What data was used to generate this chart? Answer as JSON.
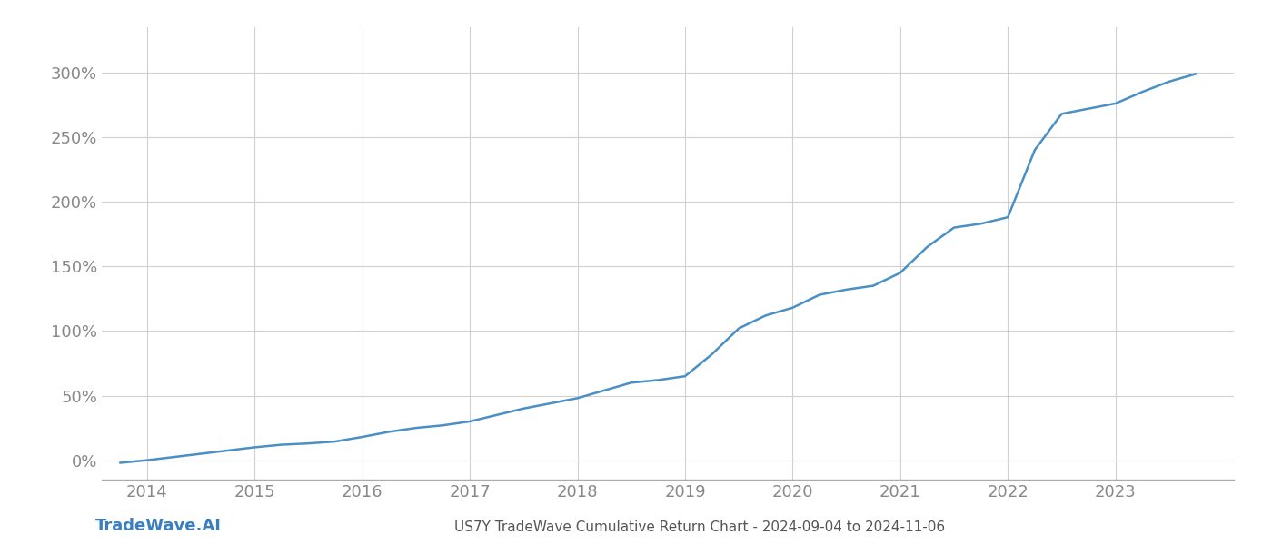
{
  "title": "US7Y TradeWave Cumulative Return Chart - 2024-09-04 to 2024-11-06",
  "watermark": "TradeWave.AI",
  "line_color": "#4a90c4",
  "background_color": "#ffffff",
  "grid_color": "#d0d0d0",
  "x_years": [
    2014,
    2015,
    2016,
    2017,
    2018,
    2019,
    2020,
    2021,
    2022,
    2023
  ],
  "x_data": [
    2013.75,
    2014.0,
    2014.25,
    2014.5,
    2014.75,
    2015.0,
    2015.25,
    2015.5,
    2015.75,
    2016.0,
    2016.25,
    2016.5,
    2016.75,
    2017.0,
    2017.25,
    2017.5,
    2017.75,
    2018.0,
    2018.25,
    2018.5,
    2018.75,
    2019.0,
    2019.25,
    2019.5,
    2019.75,
    2020.0,
    2020.25,
    2020.5,
    2020.75,
    2021.0,
    2021.25,
    2021.5,
    2021.75,
    2022.0,
    2022.25,
    2022.5,
    2022.75,
    2023.0,
    2023.25,
    2023.5,
    2023.75
  ],
  "y_data": [
    -2.0,
    0.0,
    2.5,
    5.0,
    7.5,
    10.0,
    12.0,
    13.0,
    14.5,
    18.0,
    22.0,
    25.0,
    27.0,
    30.0,
    35.0,
    40.0,
    44.0,
    48.0,
    54.0,
    60.0,
    62.0,
    65.0,
    82.0,
    102.0,
    112.0,
    118.0,
    128.0,
    132.0,
    135.0,
    145.0,
    165.0,
    180.0,
    183.0,
    188.0,
    240.0,
    268.0,
    272.0,
    276.0,
    285.0,
    293.0,
    299.0
  ],
  "yticks": [
    0,
    50,
    100,
    150,
    200,
    250,
    300
  ],
  "ylim": [
    -15,
    335
  ],
  "xlim": [
    2013.58,
    2024.1
  ],
  "title_fontsize": 11,
  "tick_fontsize": 13,
  "watermark_fontsize": 13,
  "line_width": 1.8
}
